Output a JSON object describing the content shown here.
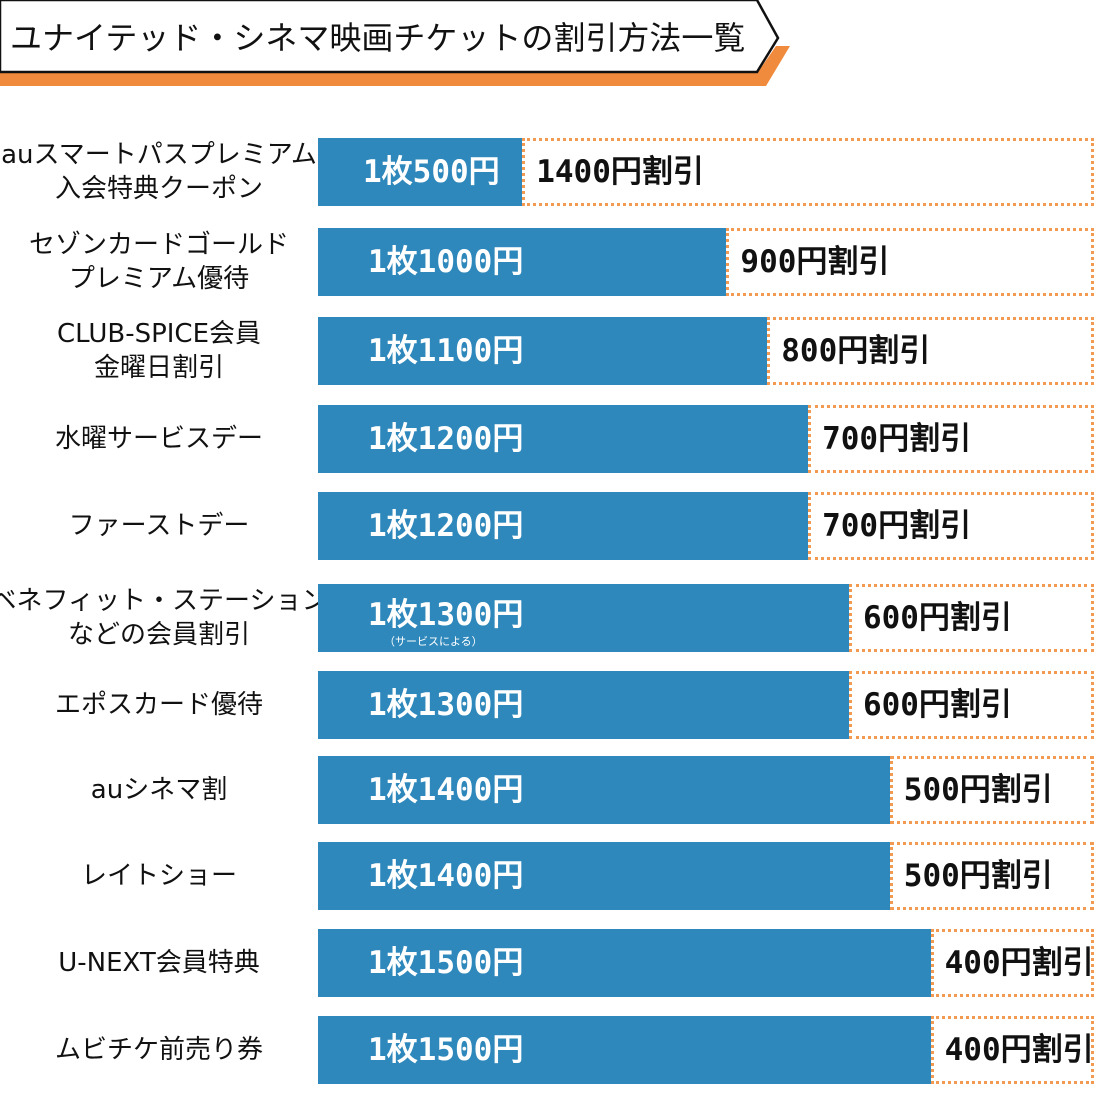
{
  "title": "ユナイテッド・シネマ映画チケットの割引方法一覧",
  "colors": {
    "bar": "#2f88bb",
    "discount_border": "#f39a52",
    "banner_accent": "#f08a3c",
    "banner_border": "#111111"
  },
  "chart_data": {
    "type": "bar",
    "orientation": "horizontal",
    "stacked": true,
    "title": "ユナイテッド・シネマ映画チケットの割引方法一覧",
    "xlim": [
      0,
      1900
    ],
    "categories": [
      "auスマートパスプレミアム 入会特典クーポン",
      "セゾンカードゴールド プレミアム優待",
      "CLUB-SPICE会員 金曜日割引",
      "水曜サービスデー",
      "ファーストデー",
      "ベネフィット・ステーション などの会員割引",
      "エポスカード優待",
      "auシネマ割",
      "レイトショー",
      "U-NEXT会員特典",
      "ムビチケ前売り券"
    ],
    "series": [
      {
        "values": [
          500,
          1000,
          1100,
          1200,
          1200,
          1300,
          1300,
          1400,
          1400,
          1500,
          1500
        ]
      },
      {
        "values": [
          1400,
          900,
          800,
          700,
          700,
          600,
          600,
          500,
          500,
          400,
          400
        ]
      }
    ],
    "rows": [
      {
        "label_lines": [
          "auスマートパスプレミアム",
          "入会特典クーポン"
        ],
        "price_label": "1枚500円",
        "discount_label": "1400円割引",
        "note": ""
      },
      {
        "label_lines": [
          "セゾンカードゴールド",
          "プレミアム優待"
        ],
        "price_label": "1枚1000円",
        "discount_label": "900円割引",
        "note": ""
      },
      {
        "label_lines": [
          "CLUB-SPICE会員",
          "金曜日割引"
        ],
        "price_label": "1枚1100円",
        "discount_label": "800円割引",
        "note": ""
      },
      {
        "label_lines": [
          "水曜サービスデー"
        ],
        "price_label": "1枚1200円",
        "discount_label": "700円割引",
        "note": ""
      },
      {
        "label_lines": [
          "ファーストデー"
        ],
        "price_label": "1枚1200円",
        "discount_label": "700円割引",
        "note": ""
      },
      {
        "label_lines": [
          "ベネフィット・ステーション",
          "などの会員割引"
        ],
        "price_label": "1枚1300円",
        "discount_label": "600円割引",
        "note": "（サービスによる）"
      },
      {
        "label_lines": [
          "エポスカード優待"
        ],
        "price_label": "1枚1300円",
        "discount_label": "600円割引",
        "note": ""
      },
      {
        "label_lines": [
          "auシネマ割"
        ],
        "price_label": "1枚1400円",
        "discount_label": "500円割引",
        "note": ""
      },
      {
        "label_lines": [
          "レイトショー"
        ],
        "price_label": "1枚1400円",
        "discount_label": "500円割引",
        "note": ""
      },
      {
        "label_lines": [
          "U-NEXT会員特典"
        ],
        "price_label": "1枚1500円",
        "discount_label": "400円割引",
        "note": ""
      },
      {
        "label_lines": [
          "ムビチケ前売り券"
        ],
        "price_label": "1枚1500円",
        "discount_label": "400円割引",
        "note": ""
      }
    ]
  }
}
